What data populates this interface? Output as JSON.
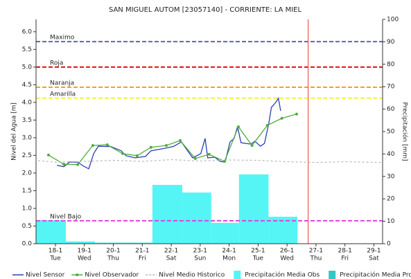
{
  "chart_data": {
    "type": "hydro",
    "title": "SAN MIGUEL AUTOM  [23057140] - CORRIENTE: LA MIEL",
    "y_label": "Nivel del Agua [m]",
    "y2_label": "Precipitación [mm]",
    "xlim": [
      17.33,
      29.3
    ],
    "xticks": [
      {
        "value": 18,
        "label": "18-1"
      },
      {
        "value": 19,
        "label": "19-1"
      },
      {
        "value": 20,
        "label": "20-1"
      },
      {
        "value": 21,
        "label": "21-1"
      },
      {
        "value": 22,
        "label": "22-1"
      },
      {
        "value": 23,
        "label": "23-1"
      },
      {
        "value": 24,
        "label": "24-1"
      },
      {
        "value": 25,
        "label": "25-1"
      },
      {
        "value": 26,
        "label": "26-1"
      },
      {
        "value": 27,
        "label": "27-1"
      },
      {
        "value": 28,
        "label": "28-1"
      },
      {
        "value": 29,
        "label": "29-1"
      }
    ],
    "xtick_days": [
      "Tue",
      "Wed",
      "Thu",
      "Fri",
      "Sat",
      "Sun",
      "Mon",
      "Tue",
      "Wed",
      "Thu",
      "Fri",
      "Sat"
    ],
    "ylim": [
      0,
      6.35
    ],
    "yticks": [
      {
        "value": 0,
        "label": "0.0"
      },
      {
        "value": 0.5,
        "label": "0.5"
      },
      {
        "value": 1,
        "label": "1.0"
      },
      {
        "value": 1.5,
        "label": "1.5"
      },
      {
        "value": 2,
        "label": "2.0"
      },
      {
        "value": 2.5,
        "label": "2.5"
      },
      {
        "value": 3,
        "label": "3.0"
      },
      {
        "value": 3.5,
        "label": "3.5"
      },
      {
        "value": 4,
        "label": "4.0"
      },
      {
        "value": 4.5,
        "label": "4.5"
      },
      {
        "value": 5,
        "label": "5.0"
      },
      {
        "value": 5.5,
        "label": "5.5"
      },
      {
        "value": 6,
        "label": "6.0"
      }
    ],
    "y2lim": [
      0,
      100
    ],
    "y2ticks": [
      0,
      10,
      20,
      30,
      40,
      50,
      60,
      70,
      80,
      90,
      100
    ],
    "current_time": 26.73,
    "current_time_color": "#e8393d",
    "thresholds": [
      {
        "name": "Maximo",
        "value": 5.72,
        "color": "#5b6a9b"
      },
      {
        "name": "Roja",
        "value": 5.0,
        "color": "#e01010"
      },
      {
        "name": "Naranja",
        "value": 4.43,
        "color": "#f5a020"
      },
      {
        "name": "Amarilla",
        "value": 4.12,
        "color": "#f5f040"
      },
      {
        "name": "Nivel Bajo",
        "value": 0.65,
        "color": "#e040e0"
      }
    ],
    "bar_series": [
      {
        "name": "Precipitación Media Obs",
        "color": "#55f5f5",
        "axis": "y2",
        "bins": [
          17.33,
          18.36,
          19.37,
          21.35,
          22.38,
          23.38,
          24.34,
          25.36,
          26.36
        ],
        "values": [
          10.5,
          1,
          0.5,
          26.2,
          22.8,
          9.3,
          30.9,
          12
        ]
      },
      {
        "name": "Precipitación Media Pro",
        "color": "#33c7c7",
        "axis": "y2"
      }
    ],
    "series": [
      {
        "name": "Nivel Sensor",
        "color": "#2a3fb0",
        "style": "solid",
        "x": [
          18.05,
          18.29,
          18.48,
          18.77,
          18.96,
          19.15,
          19.32,
          19.48,
          19.91,
          20.27,
          20.44,
          20.75,
          21.11,
          21.3,
          21.71,
          22.07,
          22.35,
          22.74,
          23.02,
          23.17,
          23.26,
          23.5,
          23.69,
          23.86,
          24.03,
          24.17,
          24.29,
          24.41,
          24.56,
          24.75,
          24.89,
          25.08,
          25.22,
          25.37,
          25.46,
          25.61,
          25.7,
          25.78
        ],
        "values": [
          2.22,
          2.18,
          2.31,
          2.31,
          2.2,
          2.12,
          2.55,
          2.76,
          2.75,
          2.63,
          2.49,
          2.43,
          2.47,
          2.63,
          2.69,
          2.75,
          2.88,
          2.43,
          2.55,
          2.98,
          2.43,
          2.45,
          2.33,
          2.31,
          2.88,
          2.98,
          3.31,
          2.86,
          2.84,
          2.82,
          2.9,
          2.76,
          2.84,
          3.41,
          3.86,
          4.0,
          4.12,
          3.76
        ]
      },
      {
        "name": "Nivel Observador",
        "color": "#4cae3c",
        "style": "markers",
        "x": [
          17.76,
          18.29,
          18.77,
          19.29,
          19.79,
          20.32,
          20.82,
          21.3,
          21.83,
          22.31,
          22.83,
          23.31,
          23.84,
          24.32,
          24.79,
          25.32,
          25.82,
          26.33
        ],
        "values": [
          2.51,
          2.25,
          2.24,
          2.78,
          2.8,
          2.55,
          2.49,
          2.73,
          2.78,
          2.92,
          2.41,
          2.53,
          2.33,
          3.31,
          2.78,
          3.35,
          3.55,
          3.67
        ]
      },
      {
        "name": "Nivel Medio Historico",
        "color": "#b8b8b8",
        "style": "dashed",
        "x": [
          17.4,
          18,
          19,
          20,
          21,
          22,
          23,
          24,
          25,
          26,
          27,
          28,
          29.3
        ],
        "values": [
          2.35,
          2.31,
          2.33,
          2.36,
          2.33,
          2.38,
          2.34,
          2.37,
          2.36,
          2.32,
          2.3,
          2.32,
          2.3
        ]
      }
    ]
  }
}
